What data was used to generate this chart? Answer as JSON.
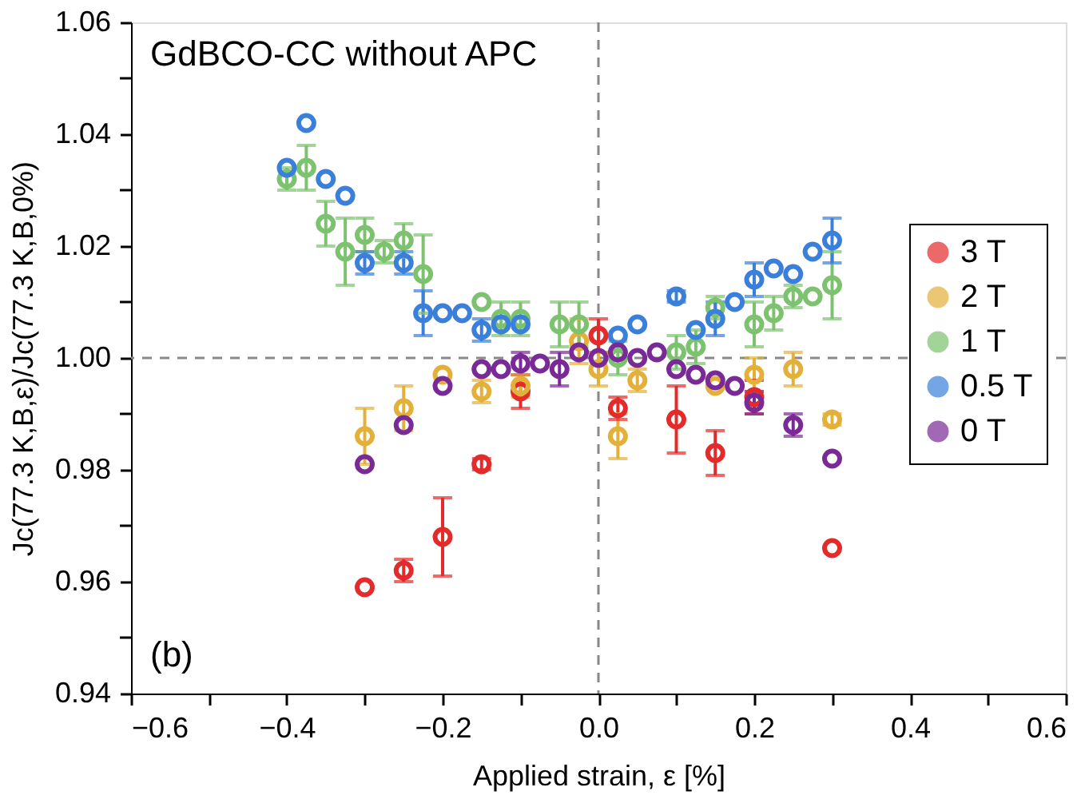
{
  "chart_data": {
    "type": "scatter",
    "xlabel": "Applied strain, ε [%]",
    "ylabel": "Jc(77.3 K,B,ε)/Jc(77.3 K,B,0%)",
    "annotations": [
      "GdBCO-CC without APC",
      "(b)"
    ],
    "xlim": [
      -0.6,
      0.6
    ],
    "xticks": [
      -0.6,
      {
        "value": -0.5,
        "label": null
      },
      -0.4,
      {
        "value": -0.3,
        "label": null
      },
      -0.2,
      {
        "value": -0.1,
        "label": null
      },
      {
        "value": 0.0,
        "label": "0.0"
      },
      {
        "value": 0.1,
        "label": null
      },
      0.2,
      {
        "value": 0.3,
        "label": null
      },
      0.4,
      {
        "value": 0.5,
        "label": null
      },
      0.6
    ],
    "ylim": [
      0.94,
      1.06
    ],
    "yticks": [
      0.94,
      {
        "value": 0.95,
        "label": null
      },
      0.96,
      {
        "value": 0.97,
        "label": null
      },
      0.98,
      {
        "value": 0.99,
        "label": null
      },
      {
        "value": 1.0,
        "label": "1.00"
      },
      {
        "value": 1.01,
        "label": null
      },
      1.02,
      {
        "value": 1.03,
        "label": null
      },
      1.04,
      {
        "value": 1.05,
        "label": null
      },
      1.06
    ],
    "grid": false,
    "legend": "right",
    "marker": "circle",
    "ref_lines": [
      {
        "axis": "x",
        "value": 0.0,
        "color": "#888888",
        "line_style": "dashed"
      },
      {
        "axis": "y",
        "value": 1.0,
        "color": "#888888",
        "line_style": "dashed"
      }
    ],
    "series": [
      {
        "name": "3 T",
        "color": "#e32b2b",
        "x": [
          -0.3,
          -0.25,
          -0.2,
          -0.15,
          -0.1,
          0.0,
          0.025,
          0.1,
          0.15,
          0.2,
          0.3
        ],
        "values": [
          0.959,
          0.962,
          0.968,
          0.981,
          0.994,
          1.004,
          0.991,
          0.989,
          0.983,
          0.993,
          0.966
        ],
        "errors": [
          null,
          0.002,
          0.007,
          0.001,
          0.003,
          0.003,
          0.002,
          0.006,
          0.004,
          0.003,
          null
        ]
      },
      {
        "name": "2 T",
        "color": "#e3b03a",
        "x": [
          -0.3,
          -0.25,
          -0.2,
          -0.15,
          -0.1,
          -0.025,
          0.0,
          0.025,
          0.05,
          0.15,
          0.2,
          0.25,
          0.3
        ],
        "values": [
          0.986,
          0.991,
          0.997,
          0.994,
          0.995,
          1.003,
          0.998,
          0.986,
          0.996,
          0.995,
          0.997,
          0.998,
          0.989
        ],
        "errors": [
          0.005,
          0.004,
          null,
          0.002,
          0.002,
          0.004,
          0.003,
          0.004,
          0.002,
          null,
          0.003,
          0.003,
          0.001
        ]
      },
      {
        "name": "1 T",
        "color": "#7cc26f",
        "x": [
          -0.4,
          -0.375,
          -0.35,
          -0.325,
          -0.3,
          -0.275,
          -0.25,
          -0.225,
          -0.15,
          -0.125,
          -0.1,
          -0.05,
          -0.025,
          0.025,
          0.1,
          0.125,
          0.15,
          0.2,
          0.225,
          0.25,
          0.275,
          0.3
        ],
        "values": [
          1.032,
          1.034,
          1.024,
          1.019,
          1.022,
          1.019,
          1.021,
          1.015,
          1.01,
          1.007,
          1.007,
          1.006,
          1.006,
          1.0,
          1.001,
          1.002,
          1.009,
          1.006,
          1.008,
          1.011,
          1.011,
          1.013
        ],
        "errors": [
          0.002,
          0.004,
          0.004,
          0.006,
          0.003,
          0.002,
          0.003,
          0.007,
          null,
          0.003,
          0.003,
          0.004,
          0.004,
          0.003,
          0.003,
          0.003,
          0.002,
          0.004,
          0.003,
          0.002,
          null,
          0.006
        ]
      },
      {
        "name": "0.5 T",
        "color": "#3a7fd9",
        "x": [
          -0.4,
          -0.375,
          -0.35,
          -0.325,
          -0.3,
          -0.25,
          -0.225,
          -0.2,
          -0.175,
          -0.15,
          -0.125,
          -0.1,
          0.025,
          0.05,
          0.1,
          0.125,
          0.15,
          0.175,
          0.2,
          0.225,
          0.25,
          0.275,
          0.3
        ],
        "values": [
          1.034,
          1.042,
          1.032,
          1.029,
          1.017,
          1.017,
          1.008,
          1.008,
          1.008,
          1.005,
          1.006,
          1.006,
          1.004,
          1.006,
          1.011,
          1.005,
          1.007,
          1.01,
          1.014,
          1.016,
          1.015,
          1.019,
          1.021
        ],
        "errors": [
          null,
          null,
          null,
          null,
          0.002,
          0.002,
          0.004,
          null,
          null,
          0.002,
          null,
          null,
          null,
          null,
          0.001,
          null,
          0.003,
          null,
          0.003,
          null,
          null,
          null,
          0.004
        ]
      },
      {
        "name": "0 T",
        "color": "#7a2a96",
        "x": [
          -0.3,
          -0.25,
          -0.2,
          -0.15,
          -0.125,
          -0.1,
          -0.075,
          -0.05,
          -0.025,
          0.0,
          0.025,
          0.05,
          0.075,
          0.1,
          0.125,
          0.15,
          0.175,
          0.2,
          0.25,
          0.3
        ],
        "values": [
          0.981,
          0.988,
          0.995,
          0.998,
          0.998,
          0.999,
          0.999,
          0.998,
          1.001,
          1.0,
          1.001,
          1.0,
          1.001,
          0.998,
          0.997,
          0.996,
          0.995,
          0.992,
          0.988,
          0.982
        ],
        "errors": [
          null,
          null,
          null,
          null,
          null,
          0.002,
          null,
          0.003,
          null,
          null,
          null,
          null,
          null,
          null,
          null,
          null,
          null,
          0.002,
          0.002,
          null
        ]
      }
    ]
  }
}
